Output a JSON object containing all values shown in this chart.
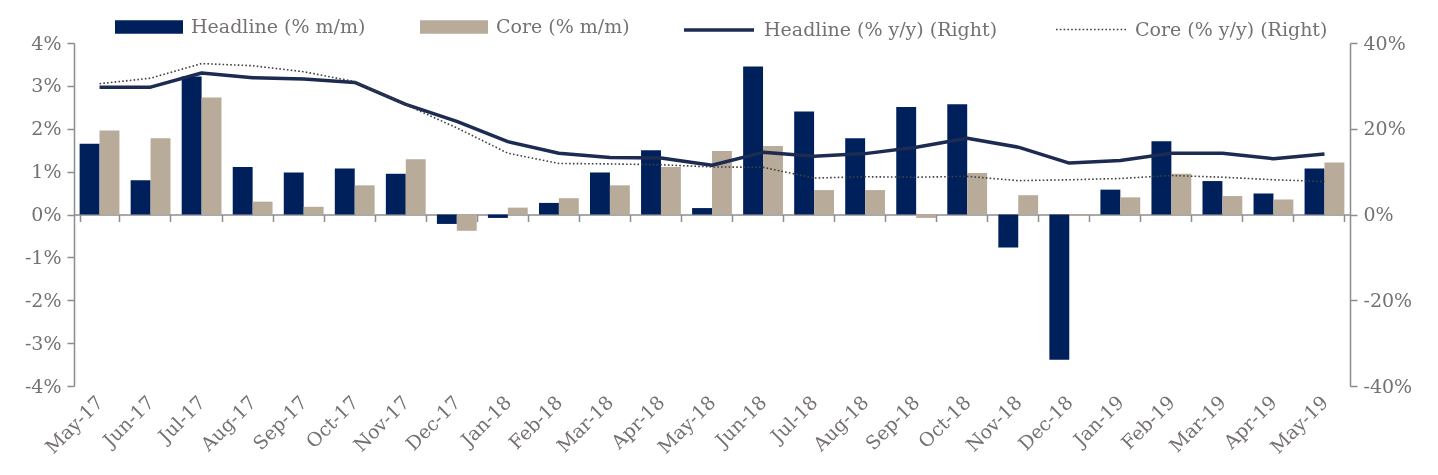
{
  "chart_data": {
    "type": "bar",
    "categories": [
      "May-17",
      "Jun-17",
      "Jul-17",
      "Aug-17",
      "Sep-17",
      "Oct-17",
      "Nov-17",
      "Dec-17",
      "Jan-18",
      "Feb-18",
      "Mar-18",
      "Apr-18",
      "May-18",
      "Jun-18",
      "Jul-18",
      "Aug-18",
      "Sep-18",
      "Oct-18",
      "Nov-18",
      "Dec-18",
      "Jan-19",
      "Feb-19",
      "Mar-19",
      "Apr-19",
      "May-19"
    ],
    "series": [
      {
        "name": "Headline (% m/m)",
        "color": "#00205c",
        "values": [
          1.65,
          0.8,
          3.22,
          1.11,
          0.98,
          1.07,
          0.95,
          -0.22,
          -0.08,
          0.27,
          0.98,
          1.5,
          0.15,
          3.45,
          2.4,
          1.78,
          2.51,
          2.57,
          -0.77,
          -3.39,
          0.58,
          1.71,
          0.78,
          0.49,
          1.07
        ]
      },
      {
        "name": "Core (% m/m)",
        "color": "#b8ab99",
        "values": [
          1.96,
          1.78,
          2.73,
          0.3,
          0.18,
          0.68,
          1.29,
          -0.38,
          0.16,
          0.38,
          0.68,
          1.11,
          1.48,
          1.6,
          0.57,
          0.57,
          -0.08,
          0.97,
          0.45,
          -0.03,
          0.4,
          0.95,
          0.43,
          0.35,
          1.21
        ]
      },
      {
        "name": "Headline (% y/y) (Right)",
        "type": "line",
        "axis": "y2",
        "color": "#1c2b52",
        "line_style": "solid",
        "values": [
          29.7,
          29.7,
          33.0,
          31.9,
          31.6,
          30.8,
          25.7,
          21.7,
          17.0,
          14.3,
          13.3,
          13.2,
          11.5,
          14.5,
          13.6,
          14.2,
          15.7,
          17.8,
          15.7,
          12.0,
          12.6,
          14.3,
          14.3,
          13.0,
          14.1
        ]
      },
      {
        "name": "Core (% y/y) (Right)",
        "type": "line",
        "axis": "y2",
        "color": "#404040",
        "line_style": "dotted",
        "values": [
          30.5,
          31.8,
          35.2,
          34.7,
          33.3,
          31.0,
          25.6,
          20.2,
          14.3,
          11.9,
          11.8,
          11.6,
          11.1,
          11.0,
          8.5,
          8.8,
          8.7,
          8.9,
          7.9,
          8.1,
          8.4,
          9.1,
          8.7,
          8.1,
          7.7
        ]
      }
    ],
    "ylim": [
      -4,
      4
    ],
    "yticks": [
      {
        "value": -4,
        "label": "-4%"
      },
      {
        "value": -3,
        "label": "-3%"
      },
      {
        "value": -2,
        "label": "-2%"
      },
      {
        "value": -1,
        "label": "-1%"
      },
      {
        "value": 0,
        "label": "0%"
      },
      {
        "value": 1,
        "label": "1%"
      },
      {
        "value": 2,
        "label": "2%"
      },
      {
        "value": 3,
        "label": "3%"
      },
      {
        "value": 4,
        "label": "4%"
      }
    ],
    "y2lim": [
      -40,
      40
    ],
    "y2ticks": [
      {
        "value": -40,
        "label": "-40%"
      },
      {
        "value": -20,
        "label": "-20%"
      },
      {
        "value": 0,
        "label": "0%"
      },
      {
        "value": 20,
        "label": "20%"
      },
      {
        "value": 40,
        "label": "40%"
      }
    ],
    "legend": "top"
  }
}
